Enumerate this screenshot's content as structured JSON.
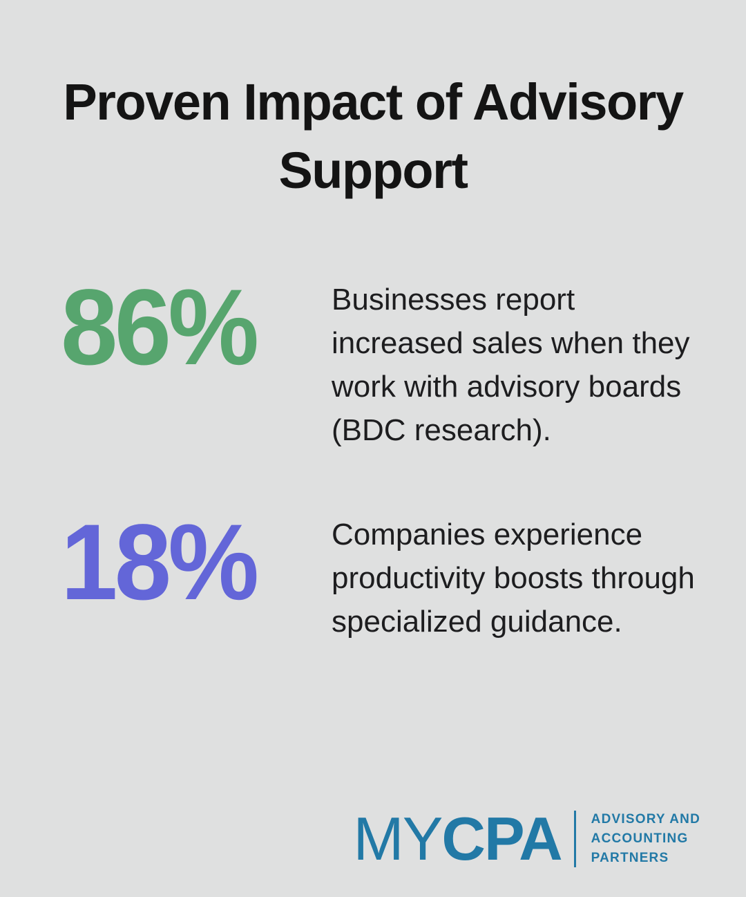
{
  "page": {
    "background": "#dfe0e0",
    "title_color": "#141414",
    "body_text_color": "#1d1d1f"
  },
  "title": {
    "full": "Proven Impact of Advisory Support",
    "lines": [
      "Proven Impact of Advisory",
      "Support"
    ]
  },
  "stats": [
    {
      "value": "86%",
      "color": "#57a56e",
      "description": "Businesses report increased sales when they work with advisory boards (BDC research)."
    },
    {
      "value": "18%",
      "color": "#6366d8",
      "description": "Companies experience productivity boosts through specialized guidance."
    }
  ],
  "logo": {
    "color": "#2279a6",
    "brand_light": "MY",
    "brand_bold": "CPA",
    "tagline_lines": [
      "ADVISORY AND",
      "ACCOUNTING",
      "PARTNERS"
    ]
  }
}
